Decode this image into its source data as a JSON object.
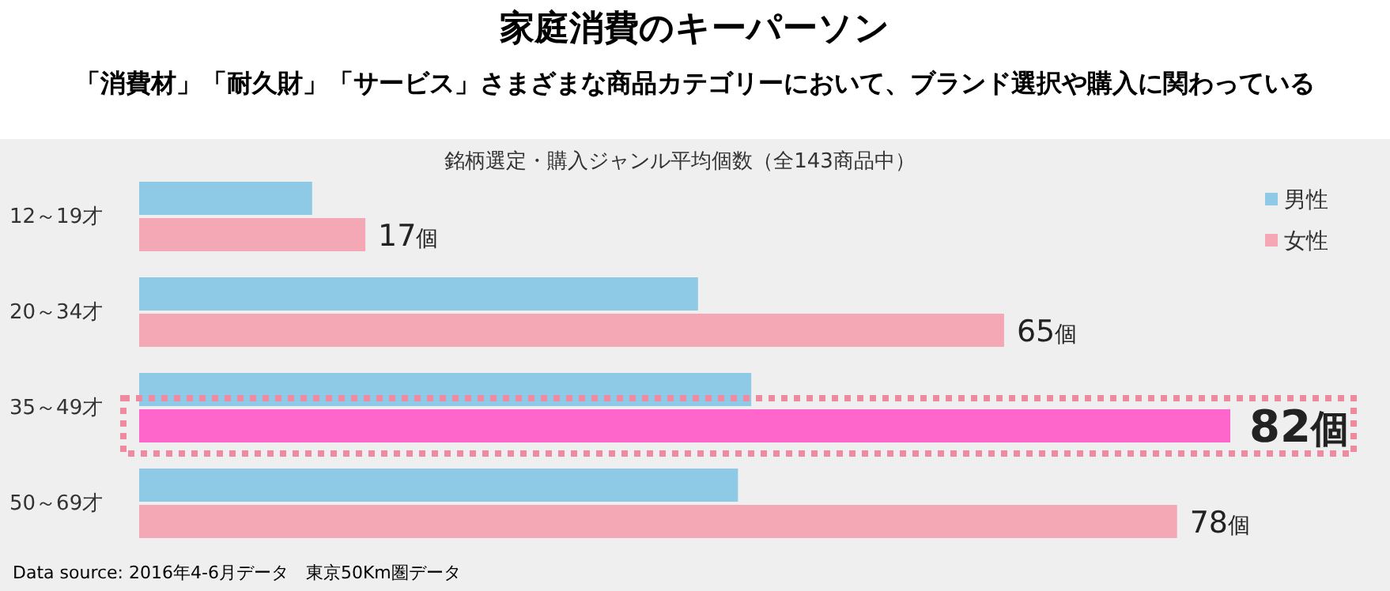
{
  "chart_data": {
    "type": "bar",
    "orientation": "horizontal",
    "title": "家庭消費のキーパーソン",
    "subtitle": "「消費材」「耐久財」「サービス」さまざまな商品カテゴリーにおいて、ブランド選択や購入に関わっている",
    "annotations": [
      "銘柄選定・購入ジャンル平均個数（全143商品中）",
      "Data source: 2016年4-6月データ　東京50Km圏データ"
    ],
    "categories": [
      "12～19才",
      "20～34才",
      "35～49才",
      "50～69才"
    ],
    "series": [
      {
        "name": "男性",
        "color": "#8ecae6",
        "values": [
          13,
          42,
          46,
          45
        ]
      },
      {
        "name": "女性",
        "color": "#f4a7b4",
        "colors": [
          "#f4a7b4",
          "#f4a7b4",
          "#ff66cc",
          "#f4a7b4"
        ],
        "values": [
          17,
          65,
          82,
          78
        ],
        "value_labels": [
          "17個",
          "65個",
          "82個",
          "78個"
        ]
      }
    ],
    "legend": "top right",
    "grid": false
  }
}
